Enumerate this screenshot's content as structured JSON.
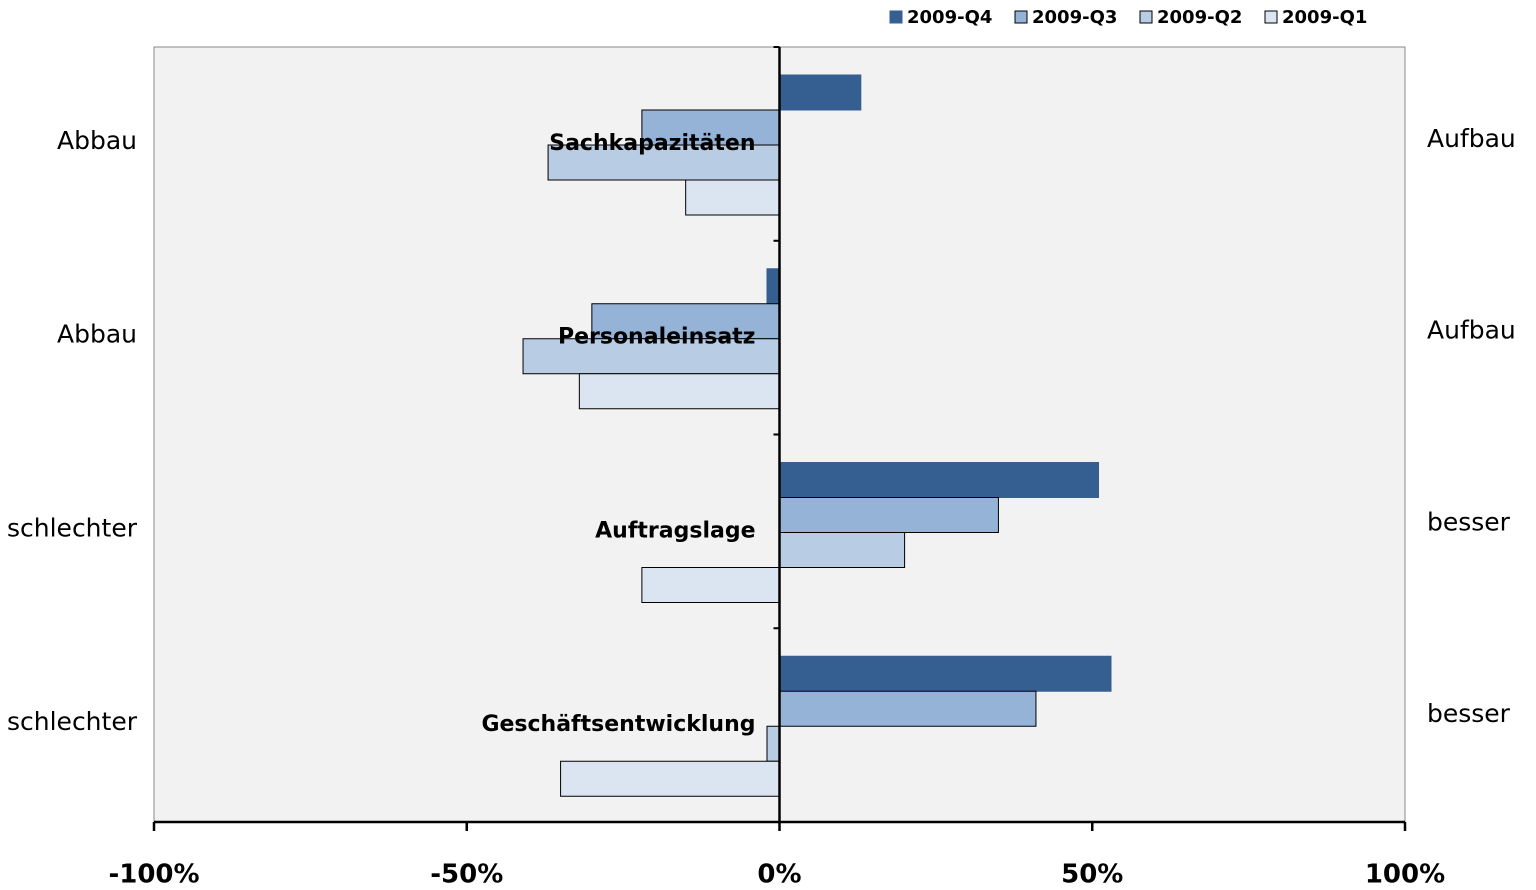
{
  "chart_data": {
    "type": "hbar",
    "categories": [
      "Sachkapazitäten",
      "Personaleinsatz",
      "Auftragslage",
      "Geschäftsentwicklung"
    ],
    "left_labels": [
      "Abbau",
      "Abbau",
      "schlechter",
      "schlechter"
    ],
    "right_labels": [
      "Aufbau",
      "Aufbau",
      "besser",
      "besser"
    ],
    "series": [
      {
        "name": "2009-Q4",
        "color": "#365f91",
        "values": [
          13,
          -2,
          51,
          53
        ]
      },
      {
        "name": "2009-Q3",
        "color": "#95b3d7",
        "values": [
          -22,
          -30,
          35,
          41
        ]
      },
      {
        "name": "2009-Q2",
        "color": "#b8cce4",
        "values": [
          -37,
          -41,
          20,
          -2
        ]
      },
      {
        "name": "2009-Q1",
        "color": "#dbe5f1",
        "values": [
          -15,
          -32,
          -22,
          -35
        ]
      }
    ],
    "xlim": [
      -100,
      100
    ],
    "xticks": [
      {
        "value": -100,
        "label": "-100%"
      },
      {
        "value": -50,
        "label": "-50%"
      },
      {
        "value": 0,
        "label": "0%"
      },
      {
        "value": 50,
        "label": "50%"
      },
      {
        "value": 100,
        "label": "100%"
      }
    ],
    "legend": "top-right"
  }
}
